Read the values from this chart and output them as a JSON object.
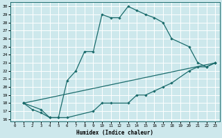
{
  "xlabel": "Humidex (Indice chaleur)",
  "xlim_min": -0.5,
  "xlim_max": 23.5,
  "ylim_min": 15.7,
  "ylim_max": 30.5,
  "yticks": [
    16,
    17,
    18,
    19,
    20,
    21,
    22,
    23,
    24,
    25,
    26,
    27,
    28,
    29,
    30
  ],
  "xticks": [
    0,
    1,
    2,
    3,
    4,
    5,
    6,
    7,
    8,
    9,
    10,
    11,
    12,
    13,
    14,
    15,
    16,
    17,
    18,
    19,
    20,
    21,
    22,
    23
  ],
  "bg_color": "#cde8ec",
  "line_color": "#1a6b6b",
  "grid_color": "#b0d8dc",
  "line1_x": [
    1,
    2,
    3,
    4,
    5,
    6,
    7,
    8,
    9,
    10,
    11,
    12,
    13,
    14,
    15,
    16,
    17,
    18,
    20,
    21,
    22,
    23
  ],
  "line1_y": [
    18,
    17.2,
    16.8,
    16.2,
    16.2,
    20.8,
    22,
    24.4,
    24.4,
    29,
    28.6,
    28.6,
    30,
    29.5,
    29,
    28.6,
    28,
    26,
    25,
    23,
    22.5,
    23
  ],
  "line2_x": [
    1,
    3,
    4,
    5,
    6,
    9,
    10,
    11,
    13,
    14,
    15,
    16,
    17,
    18,
    20,
    21,
    22,
    23
  ],
  "line2_y": [
    18,
    17.2,
    16.2,
    16.2,
    16.2,
    17,
    18,
    18,
    18,
    19,
    19,
    19.5,
    20,
    20.5,
    22,
    22.5,
    22.5,
    23
  ],
  "line3_x": [
    1,
    23
  ],
  "line3_y": [
    18,
    23
  ]
}
